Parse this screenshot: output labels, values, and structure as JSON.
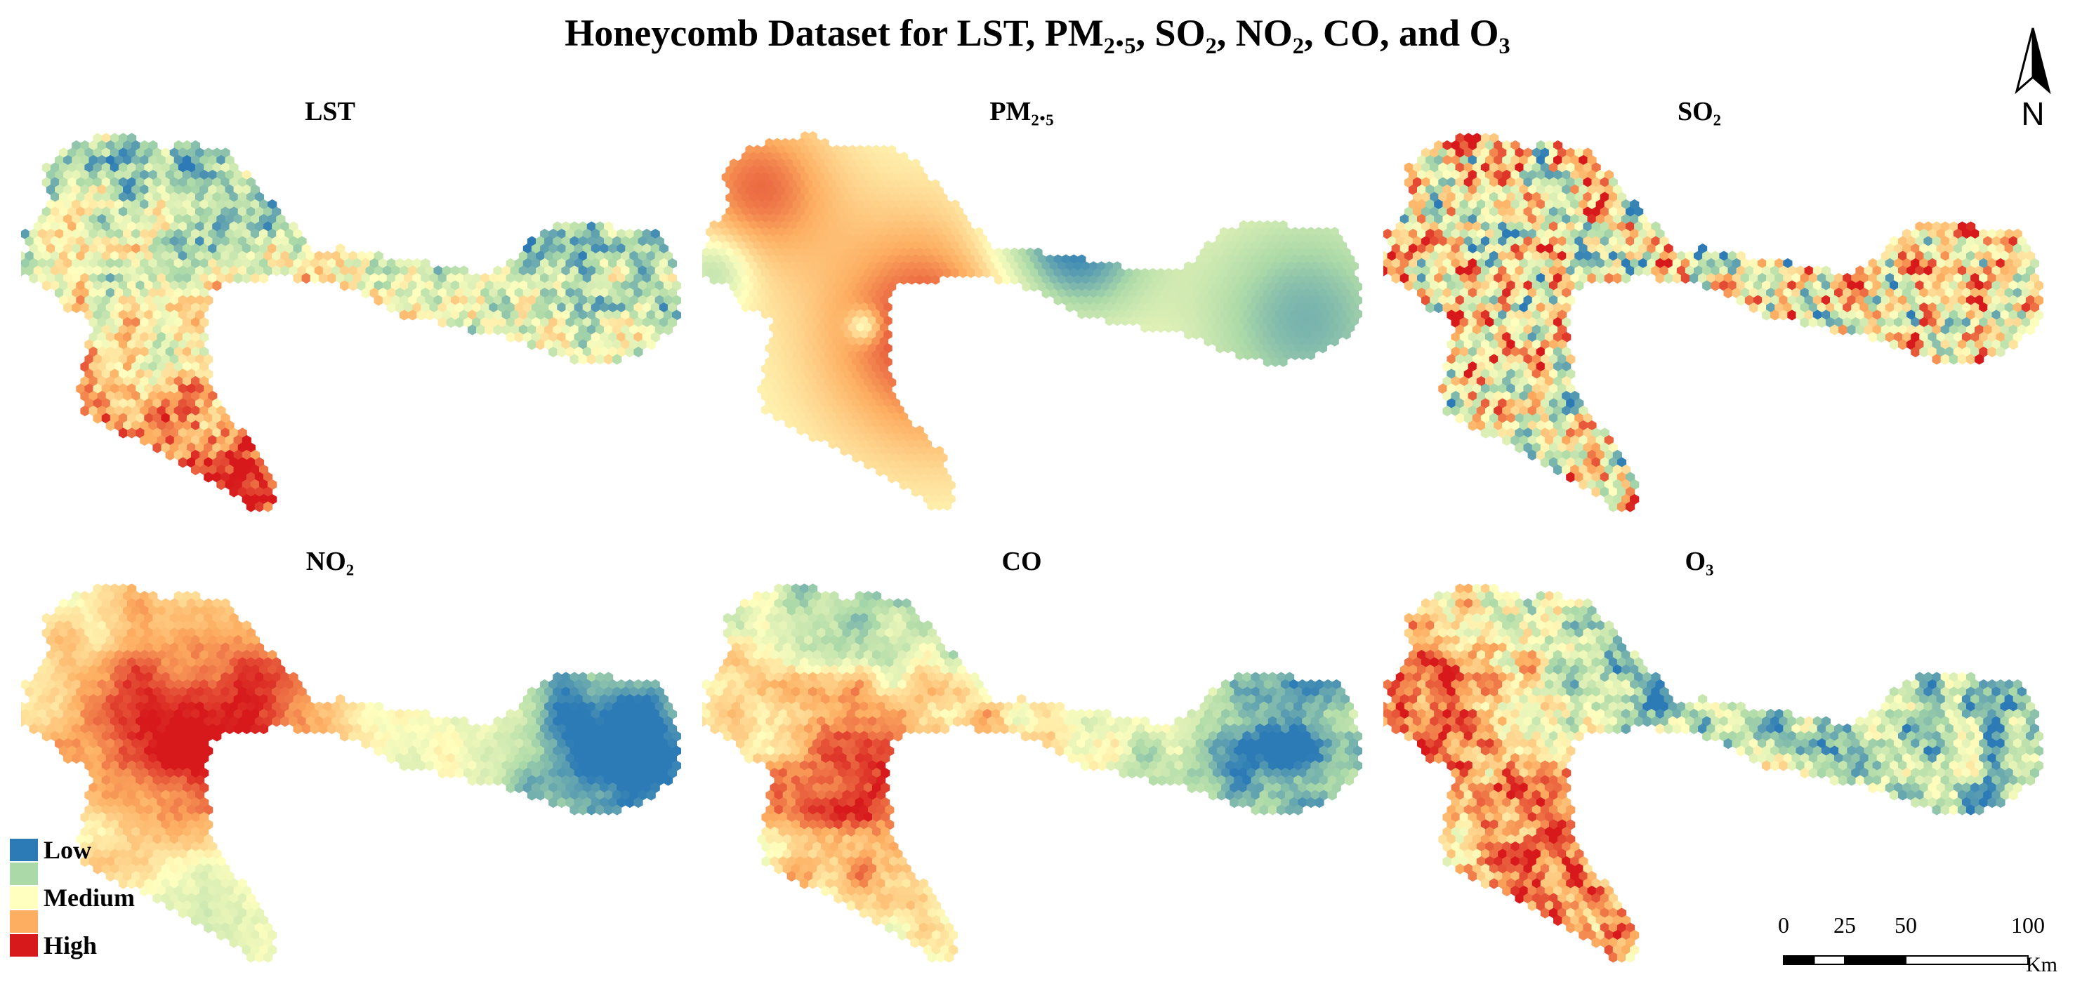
{
  "title": "Honeycomb Dataset for LST, PM₂.₅, SO₂, NO₂, CO, and O₃",
  "north_arrow": {
    "label": "N"
  },
  "panels": [
    {
      "title": "LST",
      "pattern": "lst",
      "colors": [
        "#2c7bb6",
        "#abd9a8",
        "#ffffbf",
        "#fdae61",
        "#d7191c"
      ]
    },
    {
      "title": "PM₂.₅",
      "pattern": "pm25",
      "colors": [
        "#2c7bb6",
        "#abd9a8",
        "#ffffbf",
        "#fdae61",
        "#d7191c"
      ]
    },
    {
      "title": "SO₂",
      "pattern": "so2",
      "colors": [
        "#2c7bb6",
        "#abd9a8",
        "#ffffbf",
        "#fdae61",
        "#d7191c"
      ]
    },
    {
      "title": "NO₂",
      "pattern": "no2",
      "colors": [
        "#2c7bb6",
        "#abd9a8",
        "#ffffbf",
        "#fdae61",
        "#d7191c"
      ]
    },
    {
      "title": "CO",
      "pattern": "co",
      "colors": [
        "#2c7bb6",
        "#abd9a8",
        "#ffffbf",
        "#fdae61",
        "#d7191c"
      ]
    },
    {
      "title": "O₃",
      "pattern": "o3",
      "colors": [
        "#2c7bb6",
        "#abd9a8",
        "#ffffbf",
        "#fdae61",
        "#d7191c"
      ]
    }
  ],
  "legend": {
    "items": [
      {
        "label": "Low",
        "color": "#2c7bb6"
      },
      {
        "label": "",
        "color": "#abd9a8"
      },
      {
        "label": "Medium",
        "color": "#ffffbf"
      },
      {
        "label": "",
        "color": "#fdae61"
      },
      {
        "label": "High",
        "color": "#d7191c"
      }
    ]
  },
  "scale_bar": {
    "ticks": [
      "0",
      "25",
      "50",
      "100"
    ],
    "unit": "Km"
  }
}
